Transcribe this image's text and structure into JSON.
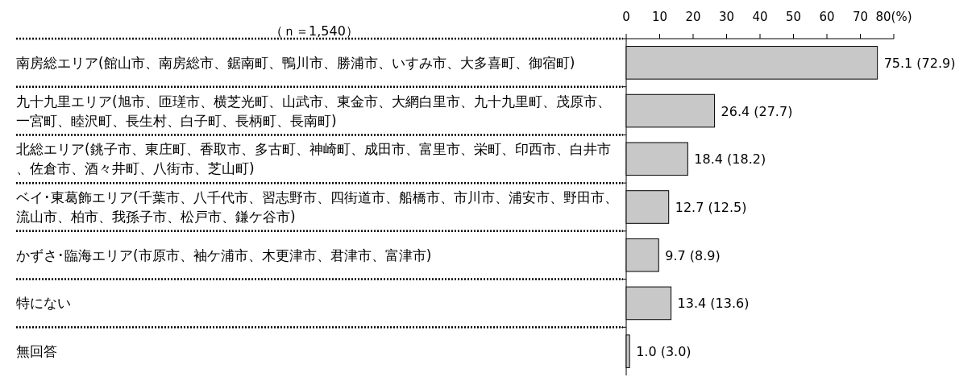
{
  "chart_data": {
    "type": "bar",
    "orientation": "horizontal",
    "categories": [
      "南房総エリア(館山市、南房総市、鋸南町、鴨川市、勝浦市、いすみ市、大多喜町、御宿町)",
      "九十九里エリア(旭市、匝瑳市、横芝光町、山武市、東金市、大網白里市、九十九里町、茂原市、一宮町、睦沢町、長生村、白子町、長柄町、長南町)",
      "北総エリア(銚子市、東庄町、香取市、多古町、神崎町、成田市、富里市、栄町、印西市、白井市、佐倉市、酒々井町、八街市、芝山町)",
      "ベイ･東葛飾エリア(千葉市、八千代市、習志野市、四街道市、船橋市、市川市、浦安市、野田市、流山市、柏市、我孫子市、松戸市、鎌ケ谷市)",
      "かずさ･臨海エリア(市原市、袖ケ浦市、木更津市、君津市、富津市)",
      "特にない",
      "無回答"
    ],
    "values": [
      75.1,
      26.4,
      18.4,
      12.7,
      9.7,
      13.4,
      1.0
    ],
    "value_labels": [
      "75.1 (72.9)",
      "26.4 (27.7)",
      "18.4 (18.2)",
      "12.7 (12.5)",
      "9.7 (8.9)",
      "13.4 (13.6)",
      "1.0 (3.0)"
    ],
    "color": "#c8c8c8",
    "xlim": [
      0,
      80
    ],
    "xticks": [
      0,
      10,
      20,
      30,
      40,
      50,
      60,
      70,
      {
        "value": 80,
        "label": "80(%)"
      }
    ],
    "annotations": [
      "（ｎ＝1,540）"
    ]
  }
}
